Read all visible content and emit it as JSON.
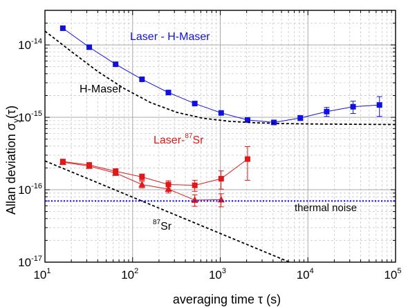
{
  "chart_data": {
    "type": "scatter",
    "xscale": "log",
    "yscale": "log",
    "xlim": [
      10,
      100000
    ],
    "ylim": [
      1e-17,
      3e-14
    ],
    "grid": true,
    "xlabel": "averaging time τ (s)",
    "ylabel": "Allan deviation σ_y(τ)",
    "x_ticks": [
      {
        "value": 10,
        "base": "10",
        "exp": "1"
      },
      {
        "value": 100,
        "base": "10",
        "exp": "2"
      },
      {
        "value": 1000,
        "base": "10",
        "exp": "3"
      },
      {
        "value": 10000,
        "base": "10",
        "exp": "4"
      },
      {
        "value": 100000,
        "base": "10",
        "exp": "5"
      }
    ],
    "y_ticks": [
      {
        "value": 1e-17,
        "base": "10",
        "exp": "-17"
      },
      {
        "value": 1e-16,
        "base": "10",
        "exp": "-16"
      },
      {
        "value": 1e-15,
        "base": "10",
        "exp": "-15"
      },
      {
        "value": 1e-14,
        "base": "10",
        "exp": "-14"
      }
    ],
    "annotations": {
      "laser_hmaser": "Laser - H-Maser",
      "hmaser": "H-Maser",
      "laser_sr_prefix": "Laser-",
      "laser_sr_sup": "87",
      "laser_sr_suffix": "Sr",
      "thermal_noise": "thermal noise",
      "sr_sup": "87",
      "sr_suffix": "Sr"
    },
    "series": [
      {
        "key": "laser_hmaser",
        "marker": "square",
        "color": "#1010e0",
        "x": [
          16,
          32,
          64,
          128,
          256,
          512,
          1024,
          2048,
          4096,
          8192,
          16384,
          32768,
          65536
        ],
        "y": [
          1.7e-14,
          9.3e-15,
          5.4e-15,
          3.35e-15,
          2.2e-15,
          1.55e-15,
          1.15e-15,
          9.2e-16,
          8.5e-16,
          9.8e-16,
          1.2e-15,
          1.4e-15,
          1.48e-15
        ],
        "err": [
          0,
          0,
          0,
          0,
          0,
          0,
          0,
          4e-17,
          5e-17,
          8e-17,
          1.7e-16,
          2.7e-16,
          4.5e-16
        ]
      },
      {
        "key": "laser_sr_squares",
        "marker": "square",
        "color": "#e01818",
        "x": [
          16,
          32,
          64,
          128,
          256,
          512,
          1024,
          2048
        ],
        "y": [
          2.45e-16,
          2.2e-16,
          1.8e-16,
          1.5e-16,
          1.18e-16,
          1.15e-16,
          1.42e-16,
          2.65e-16
        ],
        "err": [
          1.2e-17,
          1.2e-17,
          1.5e-17,
          1.5e-17,
          1.5e-17,
          2e-17,
          4e-17,
          1.3e-16
        ]
      },
      {
        "key": "laser_sr_triangles",
        "marker": "triangle",
        "color": "#e01818",
        "x": [
          16,
          32,
          64,
          128,
          256,
          512,
          1024
        ],
        "y": [
          2.4e-16,
          2.12e-16,
          1.7e-16,
          1.18e-16,
          1.02e-16,
          7.2e-17,
          7.3e-17
        ],
        "err": [
          1e-17,
          1e-17,
          1e-17,
          1.2e-17,
          1.2e-17,
          1.3e-17,
          1.5e-17
        ]
      },
      {
        "key": "hmaser_model",
        "style": "dashed",
        "color": "#000000",
        "x": [
          10,
          20,
          40,
          80,
          160,
          320,
          640,
          1280,
          2560,
          5120,
          10240,
          20480,
          40960,
          100000
        ],
        "y": [
          1.55e-14,
          8.1e-15,
          4.3e-15,
          2.5e-15,
          1.6e-15,
          1.17e-15,
          9.7e-16,
          8.8e-16,
          8.4e-16,
          8.2e-16,
          8.1e-16,
          8.05e-16,
          8e-16,
          7.95e-16
        ]
      },
      {
        "key": "sr_model",
        "style": "dashed",
        "color": "#000000",
        "x": [
          10,
          7000
        ],
        "y": [
          2.5e-16,
          9.4e-18
        ]
      },
      {
        "key": "thermal_noise",
        "style": "dotted",
        "color": "#1010e0",
        "x": [
          10,
          100000
        ],
        "y": [
          7e-17,
          7e-17
        ]
      }
    ]
  }
}
